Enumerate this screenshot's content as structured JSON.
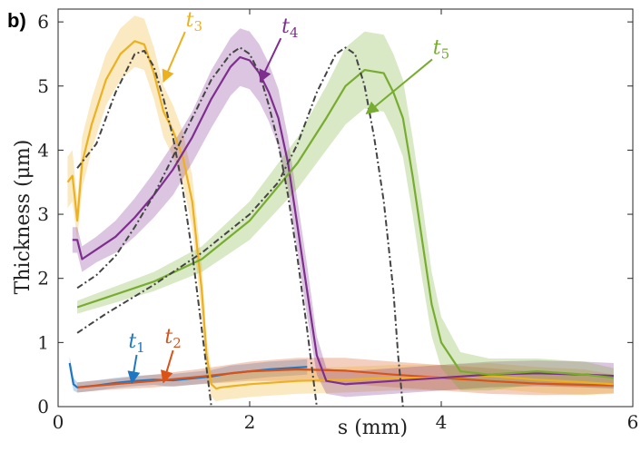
{
  "panel_label": "b)",
  "chart_data": {
    "type": "line",
    "title": "",
    "xlabel": "s (mm)",
    "ylabel": "Thickness (μm)",
    "xlim": [
      0,
      6
    ],
    "ylim": [
      0,
      6.2
    ],
    "xticks": [
      0,
      2,
      4,
      6
    ],
    "yticks": [
      0,
      1,
      2,
      3,
      4,
      5,
      6
    ],
    "grid": false,
    "series": [
      {
        "name": "t1",
        "label_main": "t",
        "label_sub": "1",
        "color": "#1f77c4",
        "x": [
          0.12,
          0.16,
          0.2,
          0.4,
          0.6,
          0.8,
          1.0,
          1.2,
          1.4,
          1.6,
          1.8,
          2.0,
          2.2,
          2.4,
          2.6
        ],
        "y": [
          0.68,
          0.35,
          0.3,
          0.33,
          0.37,
          0.4,
          0.42,
          0.41,
          0.44,
          0.47,
          0.52,
          0.55,
          0.58,
          0.6,
          0.62
        ],
        "band": [
          0.1,
          0.1,
          0.08,
          0.08,
          0.08,
          0.08,
          0.08,
          0.1,
          0.1,
          0.1,
          0.12,
          0.12,
          0.12,
          0.12,
          0.12
        ]
      },
      {
        "name": "t2",
        "label_main": "t",
        "label_sub": "2",
        "color": "#d95319",
        "x": [
          0.2,
          0.5,
          1.0,
          1.5,
          2.0,
          2.5,
          3.0,
          3.5,
          4.0,
          4.5,
          5.0,
          5.5,
          5.8
        ],
        "y": [
          0.3,
          0.34,
          0.4,
          0.47,
          0.55,
          0.58,
          0.56,
          0.5,
          0.45,
          0.4,
          0.36,
          0.34,
          0.33
        ],
        "band": [
          0.08,
          0.08,
          0.1,
          0.12,
          0.15,
          0.18,
          0.2,
          0.2,
          0.2,
          0.2,
          0.18,
          0.15,
          0.12
        ]
      },
      {
        "name": "t3",
        "label_main": "t",
        "label_sub": "3",
        "color": "#edb120",
        "x": [
          0.1,
          0.15,
          0.2,
          0.25,
          0.35,
          0.5,
          0.65,
          0.8,
          0.9,
          1.0,
          1.1,
          1.2,
          1.3,
          1.4,
          1.5,
          1.55,
          1.6,
          1.65,
          1.7,
          2.0,
          2.5,
          3.0,
          3.5,
          4.0,
          4.5,
          5.0,
          5.5,
          5.8
        ],
        "y": [
          3.5,
          3.6,
          2.9,
          3.8,
          4.4,
          5.1,
          5.5,
          5.7,
          5.65,
          5.2,
          4.6,
          4.3,
          3.9,
          3.2,
          1.8,
          0.8,
          0.35,
          0.28,
          0.3,
          0.35,
          0.4,
          0.42,
          0.45,
          0.45,
          0.48,
          0.42,
          0.38,
          0.35
        ],
        "band": [
          0.4,
          0.4,
          0.3,
          0.4,
          0.4,
          0.4,
          0.4,
          0.4,
          0.4,
          0.4,
          0.4,
          0.4,
          0.4,
          0.4,
          0.4,
          0.3,
          0.2,
          0.2,
          0.2,
          0.2,
          0.2,
          0.2,
          0.2,
          0.2,
          0.2,
          0.2,
          0.2,
          0.15
        ]
      },
      {
        "name": "t4",
        "label_main": "t",
        "label_sub": "4",
        "color": "#7e2f8e",
        "x": [
          0.15,
          0.2,
          0.25,
          0.4,
          0.6,
          0.8,
          1.0,
          1.2,
          1.4,
          1.6,
          1.8,
          1.9,
          2.0,
          2.1,
          2.2,
          2.3,
          2.4,
          2.5,
          2.6,
          2.7,
          2.8,
          3.0,
          3.5,
          4.0,
          4.5,
          5.0,
          5.5,
          5.8
        ],
        "y": [
          2.6,
          2.6,
          2.3,
          2.45,
          2.65,
          2.95,
          3.3,
          3.7,
          4.2,
          4.8,
          5.3,
          5.45,
          5.4,
          5.2,
          4.9,
          4.5,
          3.8,
          2.8,
          1.8,
          0.8,
          0.4,
          0.35,
          0.4,
          0.45,
          0.5,
          0.52,
          0.5,
          0.48
        ],
        "band": [
          0.2,
          0.2,
          0.2,
          0.2,
          0.25,
          0.3,
          0.35,
          0.4,
          0.4,
          0.45,
          0.45,
          0.45,
          0.45,
          0.45,
          0.45,
          0.45,
          0.4,
          0.4,
          0.4,
          0.3,
          0.2,
          0.2,
          0.2,
          0.2,
          0.2,
          0.2,
          0.2,
          0.2
        ]
      },
      {
        "name": "t5",
        "label_main": "t",
        "label_sub": "5",
        "color": "#77ac30",
        "x": [
          0.2,
          0.5,
          1.0,
          1.5,
          2.0,
          2.5,
          2.8,
          3.0,
          3.2,
          3.4,
          3.5,
          3.6,
          3.7,
          3.8,
          3.9,
          4.0,
          4.2,
          4.5,
          5.0,
          5.5,
          5.8
        ],
        "y": [
          1.55,
          1.7,
          1.95,
          2.3,
          2.9,
          3.8,
          4.5,
          5.0,
          5.25,
          5.2,
          4.9,
          4.5,
          3.6,
          2.6,
          1.6,
          1.0,
          0.55,
          0.5,
          0.55,
          0.5,
          0.45
        ],
        "band": [
          0.1,
          0.12,
          0.15,
          0.2,
          0.3,
          0.4,
          0.5,
          0.6,
          0.6,
          0.6,
          0.6,
          0.6,
          0.6,
          0.6,
          0.5,
          0.4,
          0.3,
          0.25,
          0.2,
          0.2,
          0.15
        ]
      },
      {
        "name": "model-t3",
        "color": "#444444",
        "dashed": true,
        "x": [
          0.2,
          0.4,
          0.6,
          0.8,
          0.9,
          1.0,
          1.1,
          1.2,
          1.3,
          1.4,
          1.5,
          1.55,
          1.6
        ],
        "y": [
          3.72,
          4.1,
          4.9,
          5.5,
          5.55,
          5.3,
          4.8,
          4.2,
          3.4,
          2.4,
          1.2,
          0.6,
          0.0
        ]
      },
      {
        "name": "model-t4",
        "color": "#444444",
        "dashed": true,
        "x": [
          0.2,
          0.4,
          0.6,
          0.8,
          1.0,
          1.2,
          1.4,
          1.6,
          1.8,
          1.9,
          2.0,
          2.1,
          2.2,
          2.3,
          2.4,
          2.5,
          2.6,
          2.65,
          2.7
        ],
        "y": [
          1.85,
          2.05,
          2.35,
          2.8,
          3.3,
          3.9,
          4.5,
          5.1,
          5.5,
          5.6,
          5.5,
          5.2,
          4.7,
          4.1,
          3.3,
          2.3,
          1.2,
          0.6,
          0.0
        ]
      },
      {
        "name": "model-t5",
        "color": "#444444",
        "dashed": true,
        "x": [
          0.2,
          0.5,
          1.0,
          1.5,
          2.0,
          2.3,
          2.5,
          2.7,
          2.9,
          3.0,
          3.1,
          3.2,
          3.3,
          3.4,
          3.5,
          3.55,
          3.6
        ],
        "y": [
          1.15,
          1.45,
          1.9,
          2.4,
          3.0,
          3.5,
          4.1,
          4.9,
          5.5,
          5.6,
          5.5,
          5.0,
          4.2,
          3.2,
          1.8,
          0.8,
          0.0
        ]
      }
    ],
    "annotations": [
      {
        "series": "t1",
        "text_main": "t",
        "text_sub": "1",
        "label_x": 0.82,
        "label_y": 0.92,
        "arrow_to": [
          0.77,
          0.37
        ]
      },
      {
        "series": "t2",
        "text_main": "t",
        "text_sub": "2",
        "label_x": 1.2,
        "label_y": 0.99,
        "arrow_to": [
          1.1,
          0.38
        ]
      },
      {
        "series": "t3",
        "text_main": "t",
        "text_sub": "3",
        "label_x": 1.42,
        "label_y": 5.93,
        "arrow_to": [
          1.1,
          5.07
        ]
      },
      {
        "series": "t4",
        "text_main": "t",
        "text_sub": "4",
        "label_x": 2.42,
        "label_y": 5.83,
        "arrow_to": [
          2.11,
          5.07
        ]
      },
      {
        "series": "t5",
        "text_main": "t",
        "text_sub": "5",
        "label_x": 4.0,
        "label_y": 5.5,
        "arrow_to": [
          3.22,
          4.57
        ]
      }
    ]
  }
}
